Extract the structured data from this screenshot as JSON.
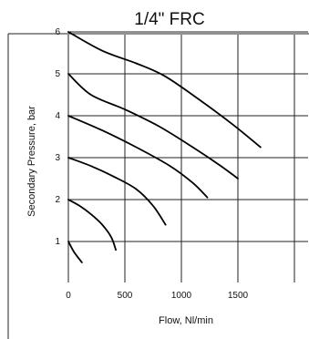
{
  "chart_data": {
    "type": "line",
    "title": "1/4\" FRC",
    "xlabel": "Flow,  Nl/min",
    "ylabel": "Secondary  Pressure, bar",
    "xlim": [
      0,
      2000
    ],
    "ylim": [
      0,
      6
    ],
    "x_ticks": [
      "0",
      "500",
      "1000",
      "1500"
    ],
    "y_ticks": [
      "1",
      "2",
      "3",
      "4",
      "5",
      "6"
    ],
    "grid": true,
    "series": [
      {
        "x": [
          0,
          50,
          120
        ],
        "y": [
          1.0,
          0.75,
          0.5
        ]
      },
      {
        "x": [
          0,
          100,
          200,
          300,
          380,
          420
        ],
        "y": [
          2.0,
          1.85,
          1.65,
          1.4,
          1.1,
          0.8
        ]
      },
      {
        "x": [
          0,
          200,
          400,
          600,
          750,
          860
        ],
        "y": [
          3.0,
          2.8,
          2.55,
          2.25,
          1.85,
          1.4
        ]
      },
      {
        "x": [
          0,
          300,
          600,
          900,
          1100,
          1230
        ],
        "y": [
          4.0,
          3.65,
          3.25,
          2.8,
          2.4,
          2.05
        ]
      },
      {
        "x": [
          0,
          200,
          500,
          800,
          1100,
          1350,
          1500
        ],
        "y": [
          5.0,
          4.5,
          4.15,
          3.75,
          3.25,
          2.8,
          2.5
        ]
      },
      {
        "x": [
          0,
          300,
          600,
          850,
          1150,
          1450,
          1700
        ],
        "y": [
          6.0,
          5.55,
          5.25,
          4.95,
          4.4,
          3.8,
          3.25
        ]
      }
    ]
  }
}
